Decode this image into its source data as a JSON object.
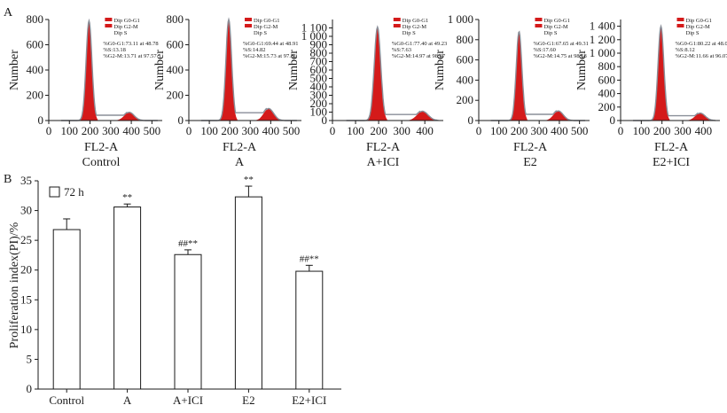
{
  "figure": {
    "panel_a_label": "A",
    "panel_b_label": "B"
  },
  "colors": {
    "histogram_fill": "#d41a1a",
    "histogram_outline": "#8a8f99",
    "bar_fill": "#ffffff",
    "axis": "#1a1a1a"
  },
  "chart_data": [
    {
      "type": "area",
      "name": "Control",
      "xlabel": "FL2-A",
      "ylabel": "Number",
      "xlim": [
        0,
        550
      ],
      "ylim": [
        0,
        800
      ],
      "x_ticks": [
        0,
        100,
        200,
        300,
        400,
        500
      ],
      "x_tick_labels": [
        "0",
        "100",
        "200",
        "300",
        "400",
        "500"
      ],
      "y_ticks": [
        0,
        200,
        400,
        600,
        800
      ],
      "y_tick_labels": [
        "0",
        "200",
        "400",
        "600",
        "800"
      ],
      "legend": [
        "Dip G0-G1",
        "Dip G2-M",
        "Dip S"
      ],
      "stats": [
        "%G0-G1:73.11 at 48.78",
        "%S:13.18",
        "%G2-M:13.71 at 97.57"
      ],
      "g1_peak_x": 195,
      "g1_peak_y": 790,
      "g2_peak_x": 390,
      "g2_peak_y": 65
    },
    {
      "type": "area",
      "name": "A",
      "xlabel": "FL2-A",
      "ylabel": "Number",
      "xlim": [
        0,
        550
      ],
      "ylim": [
        0,
        800
      ],
      "x_ticks": [
        0,
        100,
        200,
        300,
        400,
        500
      ],
      "x_tick_labels": [
        "0",
        "100",
        "200",
        "300",
        "400",
        "500"
      ],
      "y_ticks": [
        0,
        200,
        400,
        600,
        800
      ],
      "y_tick_labels": [
        "0",
        "200",
        "400",
        "600",
        "800"
      ],
      "legend": [
        "Dip G0-G1",
        "Dip G2-M",
        "Dip S"
      ],
      "stats": [
        "%G0-G1:69.44 at 48.91",
        "%S:14.82",
        "%G2-M:15.73 at 97.81"
      ],
      "g1_peak_x": 195,
      "g1_peak_y": 800,
      "g2_peak_x": 390,
      "g2_peak_y": 95
    },
    {
      "type": "area",
      "name": "A+ICI",
      "xlabel": "FL2-A",
      "ylabel": "Number",
      "xlim": [
        0,
        480
      ],
      "ylim": [
        0,
        1200
      ],
      "x_ticks": [
        0,
        100,
        200,
        300,
        400
      ],
      "x_tick_labels": [
        "0",
        "100",
        "200",
        "300",
        "400"
      ],
      "y_ticks": [
        0,
        100,
        200,
        300,
        400,
        500,
        600,
        700,
        800,
        900,
        1000,
        1100
      ],
      "y_tick_labels": [
        "0",
        "100",
        "200",
        "300",
        "400",
        "500",
        "600",
        "700",
        "800",
        "900",
        "1 000",
        "1 100"
      ],
      "legend": [
        "Dip G0-G1",
        "Dip G2-M",
        "Dip S"
      ],
      "stats": [
        "%G0-G1:77.40 at 49.23",
        "%S:7.63",
        "%G2-M:14.97 at 98.47"
      ],
      "g1_peak_x": 195,
      "g1_peak_y": 1110,
      "g2_peak_x": 390,
      "g2_peak_y": 110
    },
    {
      "type": "area",
      "name": "E2",
      "xlabel": "FL2-A",
      "ylabel": "Number",
      "xlim": [
        0,
        550
      ],
      "ylim": [
        0,
        1000
      ],
      "x_ticks": [
        0,
        100,
        200,
        300,
        400,
        500
      ],
      "x_tick_labels": [
        "0",
        "100",
        "200",
        "300",
        "400",
        "500"
      ],
      "y_ticks": [
        0,
        200,
        400,
        600,
        800,
        1000
      ],
      "y_tick_labels": [
        "0",
        "200",
        "400",
        "600",
        "800",
        "1 000"
      ],
      "legend": [
        "Dip G0-G1",
        "Dip G2-M",
        "Dip S"
      ],
      "stats": [
        "%G0-G1:67.65 at 49.31",
        "%S:17.60",
        "%G2-M:14.75 at 98.68"
      ],
      "g1_peak_x": 200,
      "g1_peak_y": 880,
      "g2_peak_x": 395,
      "g2_peak_y": 95
    },
    {
      "type": "area",
      "name": "E2+ICI",
      "xlabel": "FL2-A",
      "ylabel": "Number",
      "xlim": [
        0,
        480
      ],
      "ylim": [
        0,
        1500
      ],
      "x_ticks": [
        0,
        100,
        200,
        300,
        400
      ],
      "x_tick_labels": [
        "0",
        "100",
        "200",
        "300",
        "400"
      ],
      "y_ticks": [
        0,
        200,
        400,
        600,
        800,
        1000,
        1200,
        1400
      ],
      "y_tick_labels": [
        "0",
        "200",
        "400",
        "600",
        "800",
        "1 000",
        "1 200",
        "1 400"
      ],
      "legend": [
        "Dip G0-G1",
        "Dip G2-M",
        "Dip S"
      ],
      "stats": [
        "%G0-G1:80.22 at 48.03",
        "%S:8.12",
        "%G2-M:11.66 at 96.07"
      ],
      "g1_peak_x": 195,
      "g1_peak_y": 1400,
      "g2_peak_x": 385,
      "g2_peak_y": 110
    },
    {
      "type": "bar",
      "categories": [
        "Control",
        "A",
        "A+ICI",
        "E2",
        "E2+ICI"
      ],
      "values": [
        26.8,
        30.6,
        22.6,
        32.3,
        19.8
      ],
      "errors": [
        1.8,
        0.5,
        0.8,
        1.8,
        1.0
      ],
      "annotations": [
        "",
        "**",
        "##**",
        "**",
        "##**"
      ],
      "ylabel": "Proliferation index(PI)/%",
      "ylim": [
        0,
        35
      ],
      "y_ticks": [
        0,
        5,
        10,
        15,
        20,
        25,
        30,
        35
      ],
      "y_tick_labels": [
        "0",
        "5",
        "10",
        "15",
        "20",
        "25",
        "30",
        "35"
      ],
      "legend": "72 h",
      "legend_position": "top-left"
    }
  ]
}
